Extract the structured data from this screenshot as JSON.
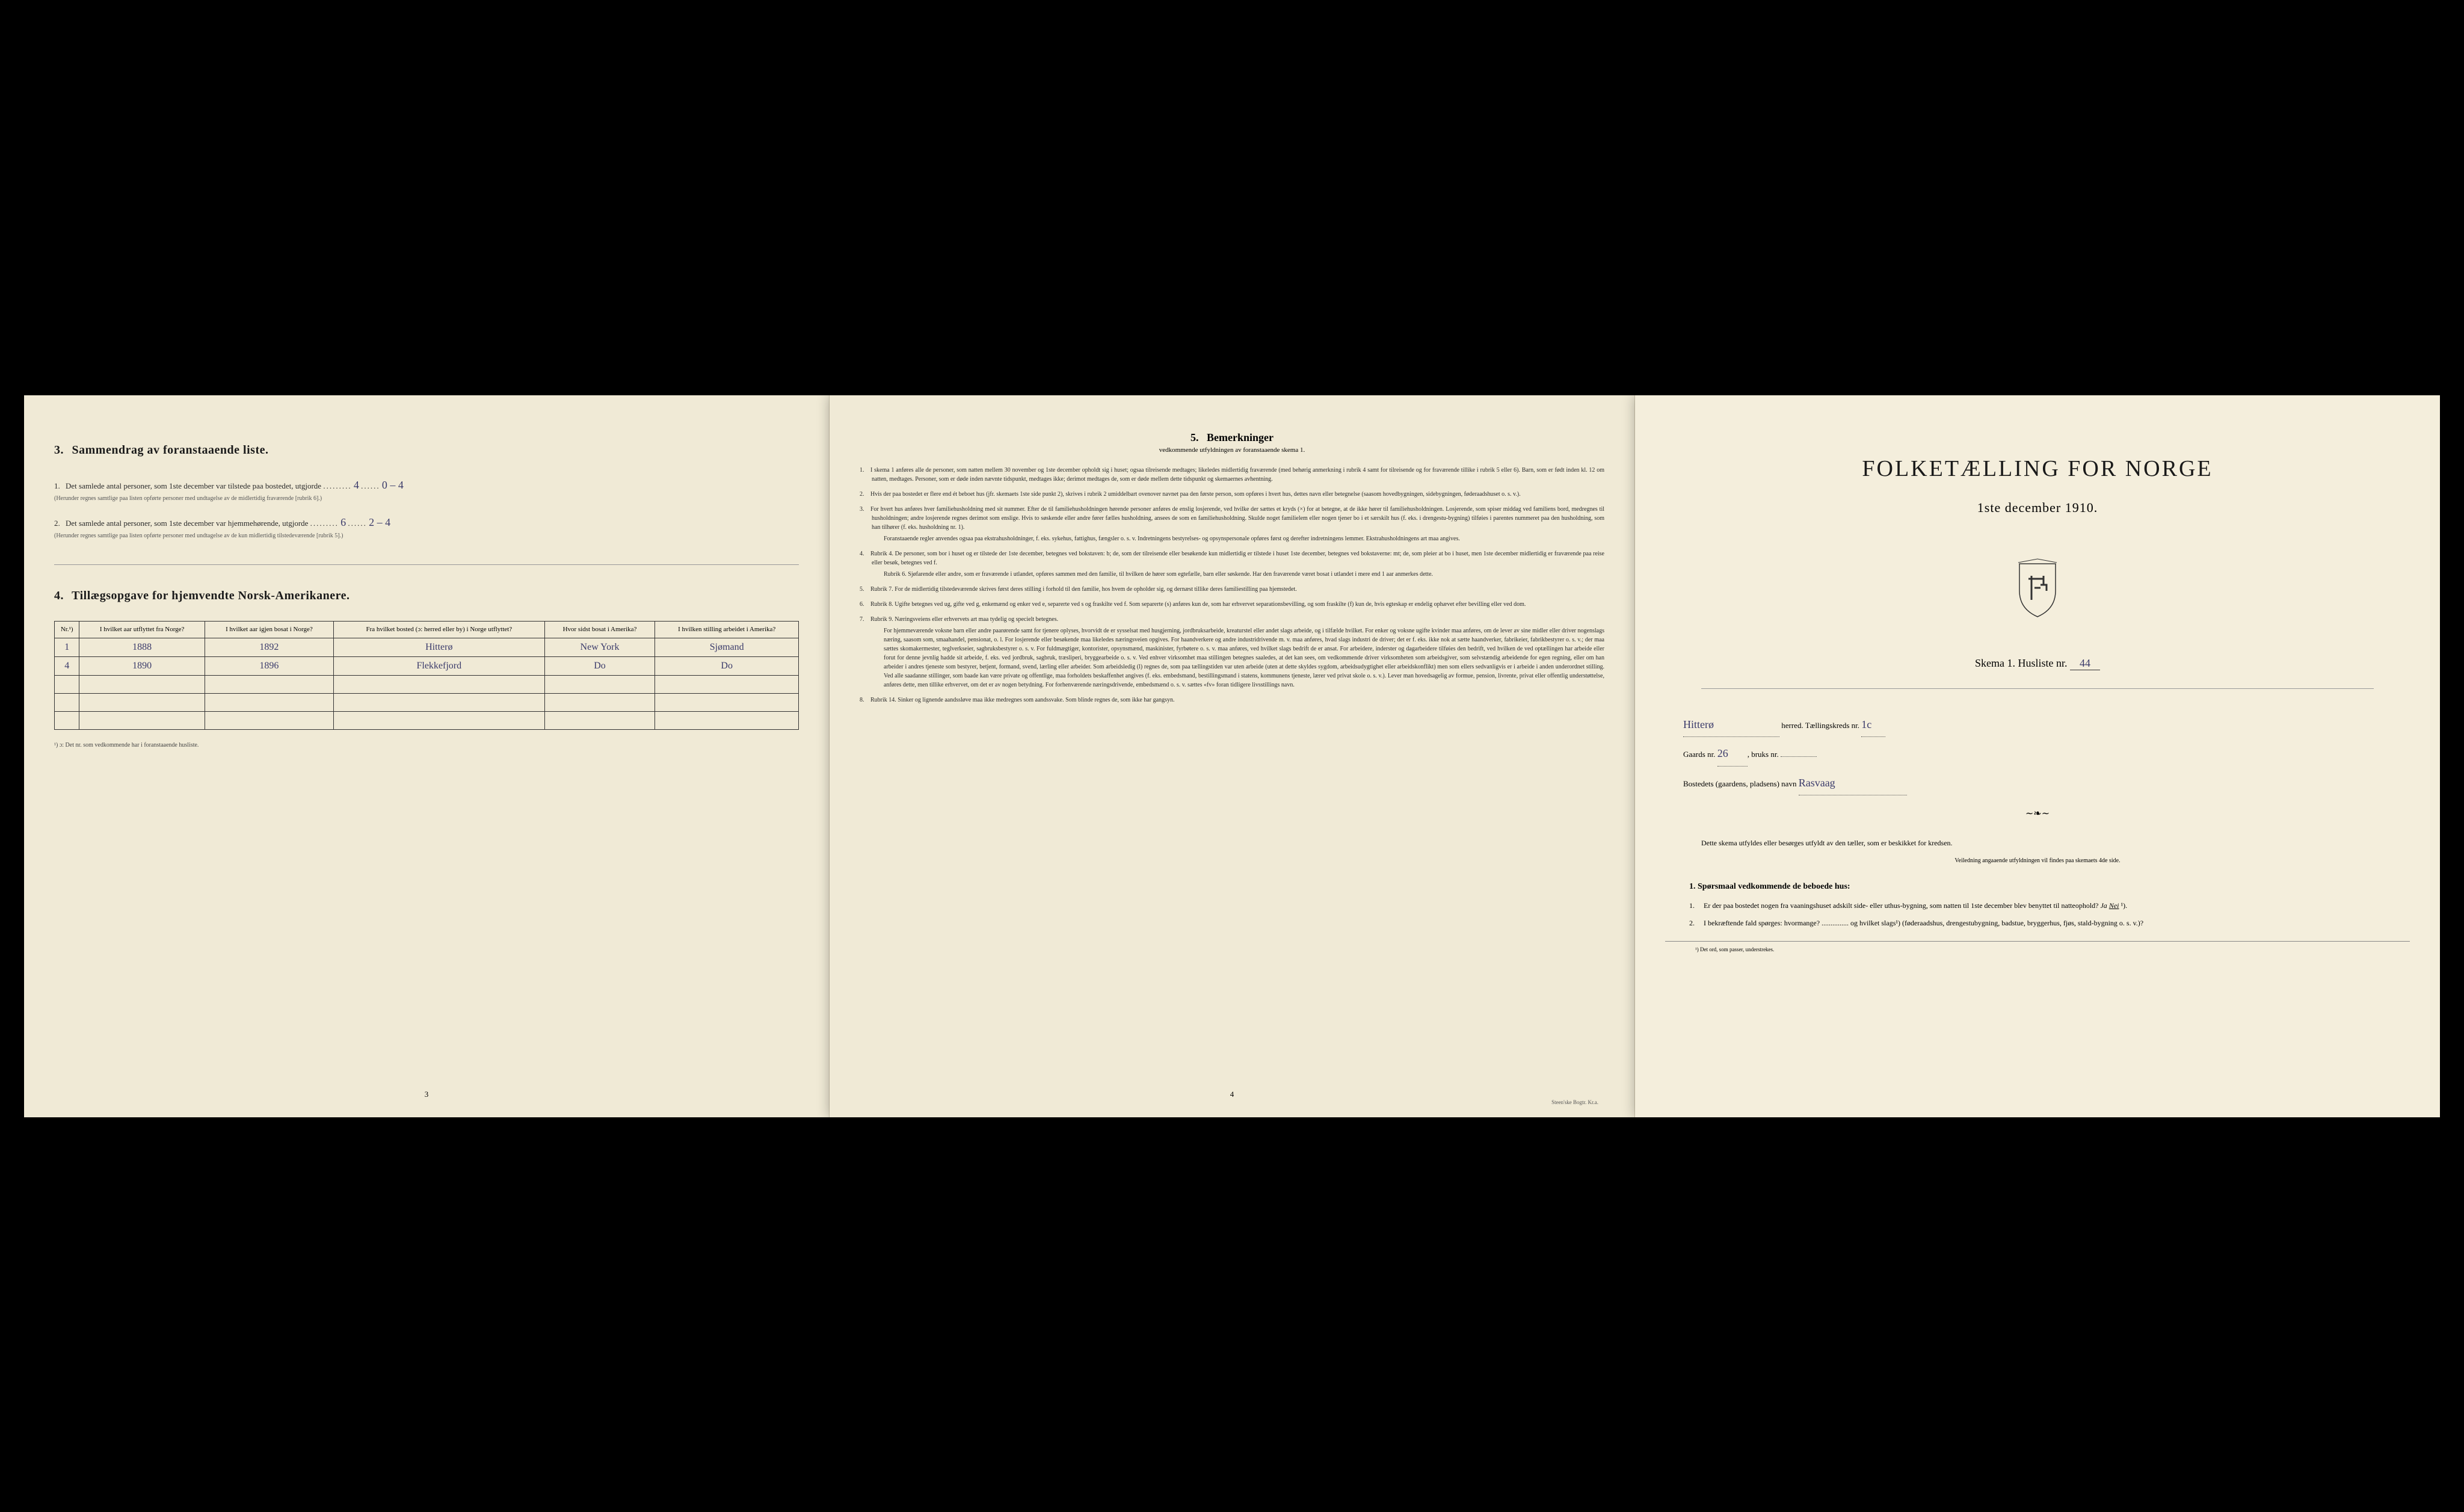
{
  "colors": {
    "paper": "#f0ead6",
    "paper_right": "#f4eedc",
    "ink": "#1a1a1a",
    "handwriting": "#3a3a6a",
    "border": "#333333",
    "background": "#000000"
  },
  "typography": {
    "body_fontsize": 13,
    "title_fontsize": 38,
    "instruction_fontsize": 10,
    "handwriting_font": "cursive"
  },
  "page1": {
    "section3": {
      "number": "3.",
      "title": "Sammendrag av foranstaaende liste.",
      "q1_num": "1.",
      "q1_text": "Det samlede antal personer, som 1ste december var tilstede paa bostedet, utgjorde",
      "q1_fill": "4",
      "q1_fill_dots": "0 – 4",
      "q1_note": "(Herunder regnes samtlige paa listen opførte personer med undtagelse av de midlertidig fraværende [rubrik 6].)",
      "q2_num": "2.",
      "q2_text": "Det samlede antal personer, som 1ste december var hjemmehørende, utgjorde",
      "q2_fill": "6",
      "q2_fill_dots": "2 – 4",
      "q2_note": "(Herunder regnes samtlige paa listen opførte personer med undtagelse av de kun midlertidig tilstedeværende [rubrik 5].)"
    },
    "section4": {
      "number": "4.",
      "title": "Tillægsopgave for hjemvendte Norsk-Amerikanere.",
      "columns": [
        "Nr.¹)",
        "I hvilket aar utflyttet fra Norge?",
        "I hvilket aar igjen bosat i Norge?",
        "Fra hvilket bosted (ɔ: herred eller by) i Norge utflyttet?",
        "Hvor sidst bosat i Amerika?",
        "I hvilken stilling arbeidet i Amerika?"
      ],
      "rows": [
        [
          "1",
          "1888",
          "1892",
          "Hitterø",
          "New York",
          "Sjømand"
        ],
        [
          "4",
          "1890",
          "1896",
          "Flekkefjord",
          "Do",
          "Do"
        ]
      ],
      "empty_rows": 3,
      "footnote": "¹) ɔ: Det nr. som vedkommende har i foranstaaende husliste."
    },
    "page_number": "3"
  },
  "page2": {
    "section5": {
      "number": "5.",
      "title": "Bemerkninger",
      "subtitle": "vedkommende utfyldningen av foranstaaende skema 1.",
      "items": [
        {
          "n": "1.",
          "text": "I skema 1 anføres alle de personer, som natten mellem 30 november og 1ste december opholdt sig i huset; ogsaa tilreisende medtages; likeledes midlertidig fraværende (med behørig anmerkning i rubrik 4 samt for tilreisende og for fraværende tillike i rubrik 5 eller 6). Barn, som er født inden kl. 12 om natten, medtages. Personer, som er døde inden nævnte tidspunkt, medtages ikke; derimot medtages de, som er døde mellem dette tidspunkt og skemaernes avhentning."
        },
        {
          "n": "2.",
          "text": "Hvis der paa bostedet er flere end ét beboet hus (jfr. skemaets 1ste side punkt 2), skrives i rubrik 2 umiddelbart ovenover navnet paa den første person, som opføres i hvert hus, dettes navn eller betegnelse (saasom hovedbygningen, sidebygningen, føderaadshuset o. s. v.)."
        },
        {
          "n": "3.",
          "text": "For hvert hus anføres hver familiehusholdning med sit nummer. Efter de til familiehusholdningen hørende personer anføres de enslig losjerende, ved hvilke der sættes et kryds (×) for at betegne, at de ikke hører til familiehusholdningen. Losjerende, som spiser middag ved familiens bord, medregnes til husholdningen; andre losjerende regnes derimot som enslige. Hvis to søskende eller andre fører fælles husholdning, ansees de som en familiehusholdning. Skulde noget familielem eller nogen tjener bo i et særskilt hus (f. eks. i drengestu-bygning) tilføies i parentes nummeret paa den husholdning, som han tilhører (f. eks. husholdning nr. 1).",
          "sub": "Foranstaaende regler anvendes ogsaa paa ekstrahusholdninger, f. eks. sykehus, fattighus, fængsler o. s. v. Indretningens bestyrelses- og opsynspersonale opføres først og derefter indretningens lemmer. Ekstrahusholdningens art maa angives."
        },
        {
          "n": "4.",
          "text": "Rubrik 4. De personer, som bor i huset og er tilstede der 1ste december, betegnes ved bokstaven: b; de, som der tilreisende eller besøkende kun midlertidig er tilstede i huset 1ste december, betegnes ved bokstaverne: mt; de, som pleier at bo i huset, men 1ste december midlertidig er fraværende paa reise eller besøk, betegnes ved f.",
          "sub": "Rubrik 6. Sjøfarende eller andre, som er fraværende i utlandet, opføres sammen med den familie, til hvilken de hører som egtefælle, barn eller søskende. Har den fraværende været bosat i utlandet i mere end 1 aar anmerkes dette."
        },
        {
          "n": "5.",
          "text": "Rubrik 7. For de midlertidig tilstedeværende skrives først deres stilling i forhold til den familie, hos hvem de opholder sig, og dernæst tillike deres familiestilling paa hjemstedet."
        },
        {
          "n": "6.",
          "text": "Rubrik 8. Ugifte betegnes ved ug, gifte ved g, enkemænd og enker ved e, separerte ved s og fraskilte ved f. Som separerte (s) anføres kun de, som har erhvervet separationsbevilling, og som fraskilte (f) kun de, hvis egteskap er endelig ophævet efter bevilling eller ved dom."
        },
        {
          "n": "7.",
          "text": "Rubrik 9. Næringsveiens eller erhvervets art maa tydelig og specielt betegnes.",
          "sub": "For hjemmeværende voksne barn eller andre paarørende samt for tjenere oplyses, hvorvidt de er sysselsat med husgjerning, jordbruksarbeide, kreaturstel eller andet slags arbeide, og i tilfælde hvilket. For enker og voksne ugifte kvinder maa anføres, om de lever av sine midler eller driver nogenslags næring, saasom som, smaahandel, pensionat, o. l. For losjerende eller besøkende maa likeledes næringsveien opgives. For haandverkere og andre industridrivende m. v. maa anføres, hvad slags industri de driver; det er f. eks. ikke nok at sætte haandverker, fabrikeier, fabrikbestyrer o. s. v.; der maa sættes skomakermester, teglverkseier, sagbruksbestyrer o. s. v. For fuldmægtiger, kontorister, opsynsmænd, maskinister, fyrbøtere o. s. v. maa anføres, ved hvilket slags bedrift de er ansat. For arbeidere, inderster og dagarbeidere tilføies den bedrift, ved hvilken de ved optællingen har arbeide eller forut for denne jevnlig hadde sit arbeide, f. eks. ved jordbruk, sagbruk, træsliperi, bryggearbeide o. s. v. Ved enhver virksomhet maa stillingen betegnes saaledes, at det kan sees, om vedkommende driver virksomheten som arbeidsgiver, som selvstændig arbeidende for egen regning, eller om han arbeider i andres tjeneste som bestyrer, betjent, formand, svend, lærling eller arbeider. Som arbeidsledig (l) regnes de, som paa tællingstiden var uten arbeide (uten at dette skyldes sygdom, arbeidsudygtighet eller arbeidskonflikt) men som ellers sedvanligvis er i arbeide i anden underordnet stilling. Ved alle saadanne stillinger, som baade kan være private og offentlige, maa forholdets beskaffenhet angives (f. eks. embedsmand, bestillingsmand i statens, kommunens tjeneste, lærer ved privat skole o. s. v.). Lever man hovedsagelig av formue, pension, livrente, privat eller offentlig understøttelse, anføres dette, men tillike erhvervet, om det er av nogen betydning. For forhenværende næringsdrivende, embedsmænd o. s. v. sættes «fv» foran tidligere livsstillings navn."
        },
        {
          "n": "8.",
          "text": "Rubrik 14. Sinker og lignende aandssløve maa ikke medregnes som aandssvake. Som blinde regnes de, som ikke har gangsyn."
        }
      ]
    },
    "page_number": "4",
    "printer": "Steen'ske Bogtr.  Kr.a."
  },
  "page3": {
    "main_title": "FOLKETÆLLING FOR NORGE",
    "date": "1ste december 1910.",
    "skema_label": "Skema 1.   Husliste nr.",
    "skema_fill": "44",
    "herred_label": "herred.   Tællingskreds nr.",
    "herred_fill": "Hitterø",
    "kreds_fill": "1c",
    "gaard_label": "Gaards nr.",
    "gaard_fill": "26",
    "bruks_label": "bruks nr.",
    "bruks_fill": "",
    "bosted_label": "Bostedets (gaardens, pladsens) navn",
    "bosted_fill": "Rasvaag",
    "instr_lead": "Dette skema utfyldes eller besørges utfyldt av den tæller, som er beskikket for kredsen.",
    "instr_center": "Veiledning angaaende utfyldningen vil findes paa skemaets 4de side.",
    "q1_heading_num": "1.",
    "q1_heading": "Spørsmaal vedkommende de beboede hus:",
    "q1_items": [
      {
        "n": "1.",
        "text": "Er der paa bostedet nogen fra vaaningshuset adskilt side- eller uthus-bygning, som natten til 1ste december blev benyttet til natteophold?",
        "answer_ja": "Ja",
        "answer_nei": "Nei",
        "note": "¹)."
      },
      {
        "n": "2.",
        "text": "I bekræftende fald spørges: hvormange? ............... og hvilket slags¹) (føderaadshus, drengestubygning, badstue, bryggerhus, fjøs, stald-bygning o. s. v.)?"
      }
    ],
    "footnote": "¹) Det ord, som passer, understrekes."
  }
}
